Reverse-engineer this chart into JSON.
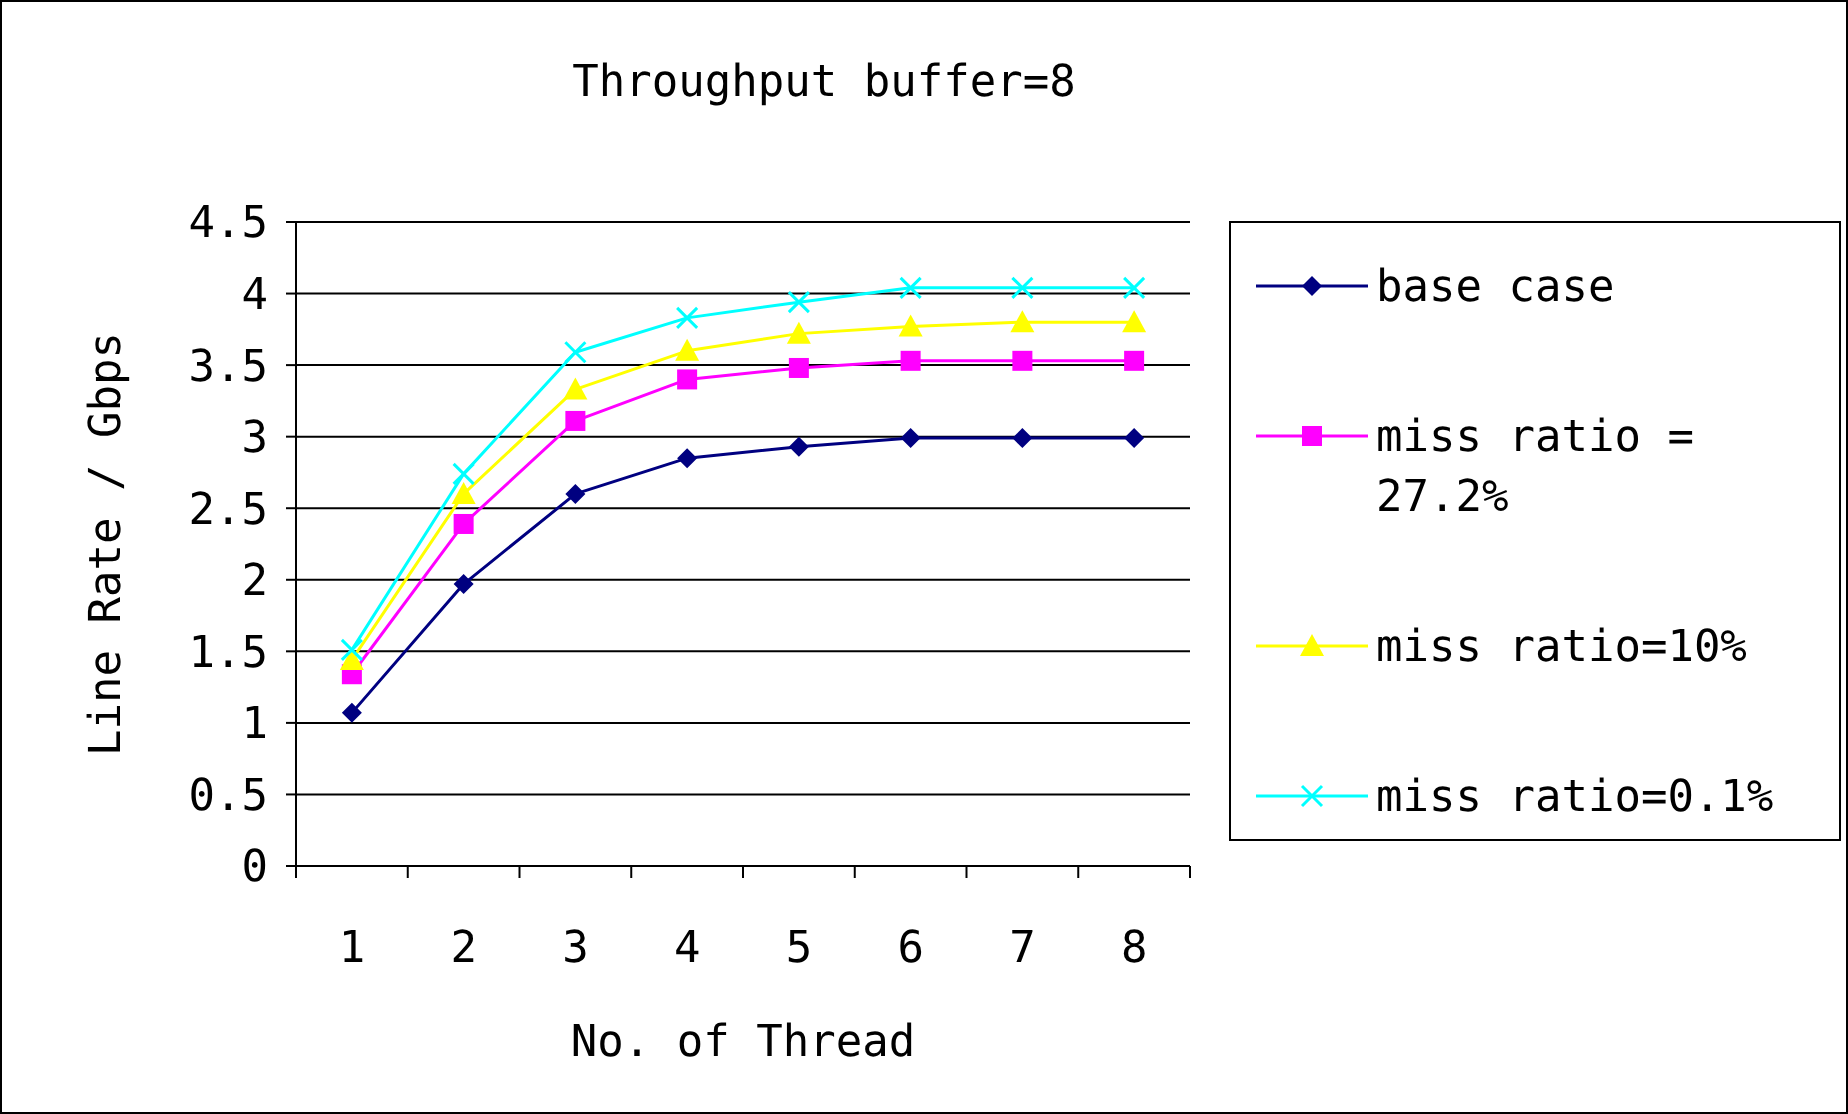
{
  "chart_data": {
    "type": "line",
    "title": "Throughput buffer=8",
    "xlabel": "No. of Thread",
    "ylabel": "Line Rate / Gbps",
    "categories": [
      "1",
      "2",
      "3",
      "4",
      "5",
      "6",
      "7",
      "8"
    ],
    "series": [
      {
        "name": "base case",
        "color": "#000080",
        "marker": "diamond",
        "values": [
          1.07,
          1.97,
          2.6,
          2.85,
          2.93,
          2.99,
          2.99,
          2.99
        ]
      },
      {
        "name": "miss ratio = 27.2%",
        "color": "#ff00ff",
        "marker": "square",
        "values": [
          1.34,
          2.39,
          3.11,
          3.4,
          3.48,
          3.53,
          3.53,
          3.53
        ]
      },
      {
        "name": "miss ratio=10%",
        "color": "#ffff00",
        "marker": "triangle",
        "values": [
          1.44,
          2.6,
          3.33,
          3.6,
          3.72,
          3.77,
          3.8,
          3.8
        ]
      },
      {
        "name": "miss ratio=0.1%",
        "color": "#00ffff",
        "marker": "cross",
        "values": [
          1.51,
          2.74,
          3.59,
          3.83,
          3.94,
          4.04,
          4.04,
          4.04
        ]
      }
    ],
    "ylim": [
      0,
      4.5
    ],
    "yticks": [
      0,
      0.5,
      1,
      1.5,
      2,
      2.5,
      3,
      3.5,
      4,
      4.5
    ],
    "grid": "y",
    "legend": "right"
  }
}
